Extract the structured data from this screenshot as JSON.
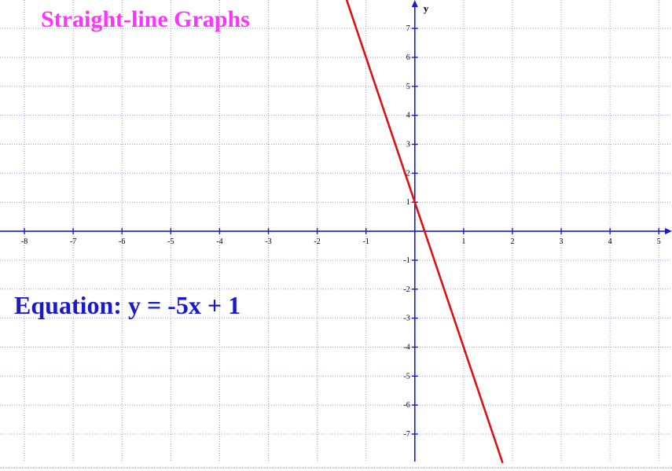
{
  "title": "Straight-line Graphs",
  "equation_text": "Equation: y = -5x + 1",
  "chart_data": {
    "type": "line",
    "title": "Straight-line Graphs",
    "xlabel": "",
    "ylabel": "y",
    "xlim": [
      -8.5,
      5.27
    ],
    "ylim": [
      -7.95,
      7.98
    ],
    "x_ticks": [
      -8,
      -7,
      -6,
      -5,
      -4,
      -3,
      -2,
      -1,
      1,
      2,
      3,
      4,
      5
    ],
    "y_ticks": [
      -7,
      -6,
      -5,
      -4,
      -3,
      -2,
      -1,
      1,
      2,
      3,
      4,
      5,
      6,
      7
    ],
    "grid": true,
    "series": [
      {
        "slope": -5,
        "intercept": 1,
        "x": [
          -1.45,
          1.8
        ],
        "y": [
          8.25,
          -8.0
        ]
      }
    ],
    "colors": {
      "line": "#dd1111",
      "axis": "#1a1acc",
      "grid": "#9a9ae6",
      "title": "#ff33ff",
      "equation": "#1a1acc"
    }
  }
}
